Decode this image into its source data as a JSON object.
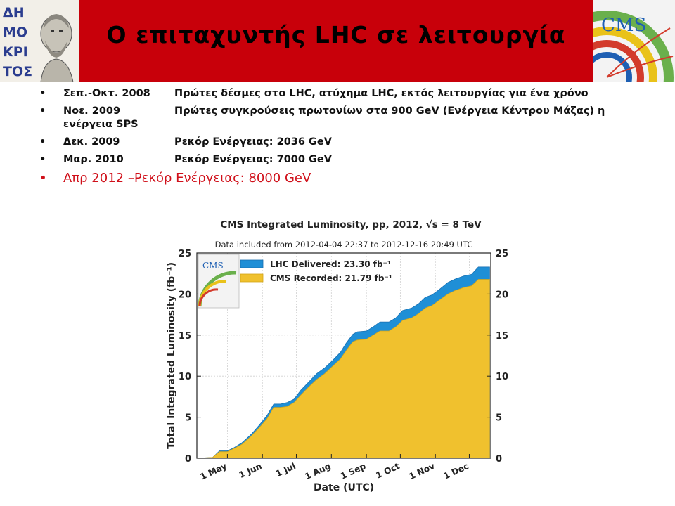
{
  "header": {
    "title": "Ο επιταχυντής LHC σε λειτουργία",
    "logo_left_text": "ΔΗΜΟΚΡΙΤΟΣ",
    "logo_right_text": "CMS"
  },
  "colors": {
    "header_bg": "#c8000a",
    "highlight": "#d0101a",
    "delivered": "#1f8fd6",
    "recorded": "#f0c12e"
  },
  "bullets": [
    {
      "date": "Σεπ.-Οκτ. 2008",
      "text": "Πρώτες δέσμες στο LHC, ατύχημα LHC, εκτός  λειτουργίας για ένα χρόνο"
    },
    {
      "date": "Νοε. 2009",
      "text": "Πρώτες συγκρούσεις πρωτονίων στα 900 GeV (Ενέργεια Κέντρου Μάζας) η ενέργεια SPS"
    },
    {
      "date": "Δεκ. 2009",
      "text": "Ρεκόρ Ενέργειας: 2036 GeV"
    },
    {
      "date": "Μαρ. 2010",
      "text": "Ρεκόρ Ενέργειας: 7000 GeV"
    },
    {
      "date": "Απρ 2012 – ",
      "text": "Ρεκόρ Ενέργειας: 8000 GeV"
    }
  ],
  "chart_data": {
    "type": "area",
    "title": "CMS Integrated Luminosity, pp, 2012, √s = 8 TeV",
    "subtitle": "Data included from 2012-04-04 22:37 to 2012-12-16 20:49 UTC",
    "xlabel": "Date (UTC)",
    "ylabel": "Total Integrated Luminosity (fb⁻¹)",
    "ylim": [
      0,
      25
    ],
    "yticks": [
      "0",
      "5",
      "10",
      "15",
      "20",
      "25"
    ],
    "x_ticks": [
      "1 May",
      "1 Jun",
      "1 Jul",
      "1 Aug",
      "1 Sep",
      "1 Oct",
      "1 Nov",
      "1 Dec"
    ],
    "x_tick_days": [
      27,
      58,
      88,
      119,
      150,
      180,
      211,
      241
    ],
    "legend_position": "top-left",
    "x_days": [
      0,
      14,
      20,
      27,
      33,
      40,
      48,
      55,
      62,
      68,
      74,
      80,
      86,
      92,
      99,
      106,
      113,
      120,
      127,
      132,
      138,
      142,
      150,
      156,
      162,
      170,
      176,
      182,
      190,
      196,
      202,
      208,
      214,
      222,
      228,
      236,
      243,
      249,
      252,
      259
    ],
    "series": [
      {
        "name": "LHC Delivered: 23.30 fb⁻¹",
        "values": [
          0,
          0.1,
          0.9,
          0.9,
          1.3,
          1.9,
          2.9,
          4.0,
          5.2,
          6.6,
          6.6,
          6.8,
          7.2,
          8.3,
          9.3,
          10.3,
          11.0,
          11.9,
          12.9,
          14.0,
          15.1,
          15.4,
          15.5,
          16.0,
          16.6,
          16.6,
          17.1,
          18.0,
          18.3,
          18.8,
          19.6,
          19.9,
          20.5,
          21.4,
          21.8,
          22.2,
          22.4,
          23.3,
          23.3,
          23.3
        ]
      },
      {
        "name": "CMS Recorded: 21.79 fb⁻¹",
        "values": [
          0,
          0.1,
          0.8,
          0.8,
          1.2,
          1.7,
          2.7,
          3.7,
          4.8,
          6.2,
          6.2,
          6.3,
          6.8,
          7.7,
          8.7,
          9.6,
          10.3,
          11.2,
          12.1,
          13.1,
          14.2,
          14.4,
          14.5,
          15.0,
          15.5,
          15.5,
          16.0,
          16.8,
          17.1,
          17.6,
          18.3,
          18.6,
          19.2,
          20.0,
          20.4,
          20.8,
          21.0,
          21.79,
          21.79,
          21.79
        ]
      }
    ]
  }
}
